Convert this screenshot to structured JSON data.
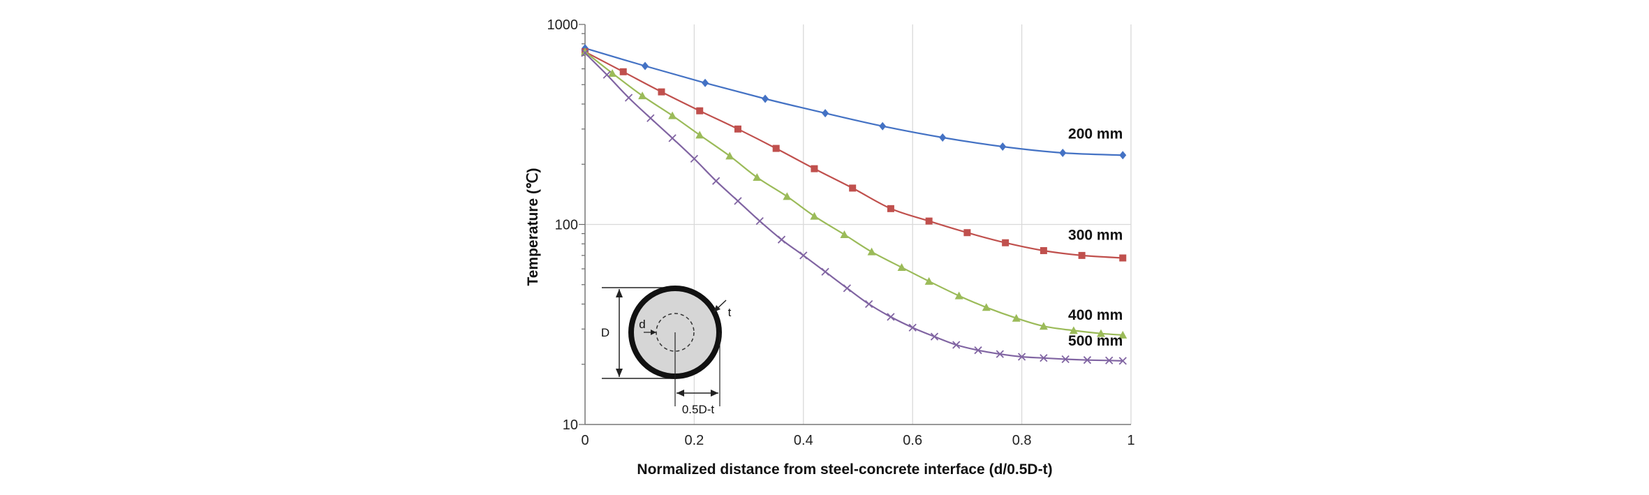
{
  "chart_data": {
    "type": "line",
    "title": "",
    "xlabel": "Normalized distance from steel-concrete interface (d/0.5D-t)",
    "ylabel": "Temperature (℃)",
    "xlim": [
      0,
      1
    ],
    "ylim": [
      10,
      1000
    ],
    "yscale": "log",
    "grid": true,
    "x_ticks": [
      "0",
      "0.2",
      "0.4",
      "0.6",
      "0.8",
      "1"
    ],
    "y_ticks": [
      "10",
      "100",
      "1000"
    ],
    "series": [
      {
        "name": "200 mm",
        "color": "#4472c4",
        "marker": "diamond",
        "x": [
          0,
          0.11,
          0.22,
          0.33,
          0.44,
          0.545,
          0.655,
          0.765,
          0.875,
          0.985
        ],
        "y": [
          760,
          620,
          510,
          425,
          360,
          310,
          272,
          245,
          228,
          222
        ]
      },
      {
        "name": "300 mm",
        "color": "#c0504d",
        "marker": "square",
        "x": [
          0,
          0.07,
          0.14,
          0.21,
          0.28,
          0.35,
          0.42,
          0.49,
          0.56,
          0.63,
          0.7,
          0.77,
          0.84,
          0.91,
          0.985
        ],
        "y": [
          730,
          580,
          460,
          370,
          300,
          240,
          190,
          152,
          120,
          104,
          91,
          81,
          74,
          70,
          68
        ]
      },
      {
        "name": "400 mm",
        "color": "#9bbb59",
        "marker": "triangle",
        "x": [
          0,
          0.05,
          0.105,
          0.16,
          0.21,
          0.265,
          0.315,
          0.37,
          0.42,
          0.475,
          0.525,
          0.58,
          0.63,
          0.685,
          0.735,
          0.79,
          0.84,
          0.895,
          0.945,
          0.985
        ],
        "y": [
          730,
          570,
          440,
          350,
          280,
          220,
          172,
          138,
          110,
          89,
          73,
          61,
          52,
          44,
          38.5,
          34,
          31,
          29.5,
          28.5,
          28
        ]
      },
      {
        "name": "500 mm",
        "color": "#8064a2",
        "marker": "x",
        "x": [
          0,
          0.04,
          0.08,
          0.12,
          0.16,
          0.2,
          0.24,
          0.28,
          0.32,
          0.36,
          0.4,
          0.44,
          0.48,
          0.52,
          0.56,
          0.6,
          0.64,
          0.68,
          0.72,
          0.76,
          0.8,
          0.84,
          0.88,
          0.92,
          0.96,
          0.985
        ],
        "y": [
          720,
          560,
          430,
          340,
          270,
          213,
          165,
          131,
          104,
          84,
          70,
          58,
          48,
          40,
          34.5,
          30.5,
          27.5,
          25,
          23.5,
          22.5,
          21.8,
          21.5,
          21.2,
          21,
          20.9,
          20.8
        ]
      }
    ],
    "annotations": [
      "200 mm",
      "300 mm",
      "400 mm",
      "500 mm"
    ],
    "inset": {
      "type": "diagram",
      "labels": [
        "D",
        "d",
        "t",
        "0.5D-t"
      ]
    }
  }
}
